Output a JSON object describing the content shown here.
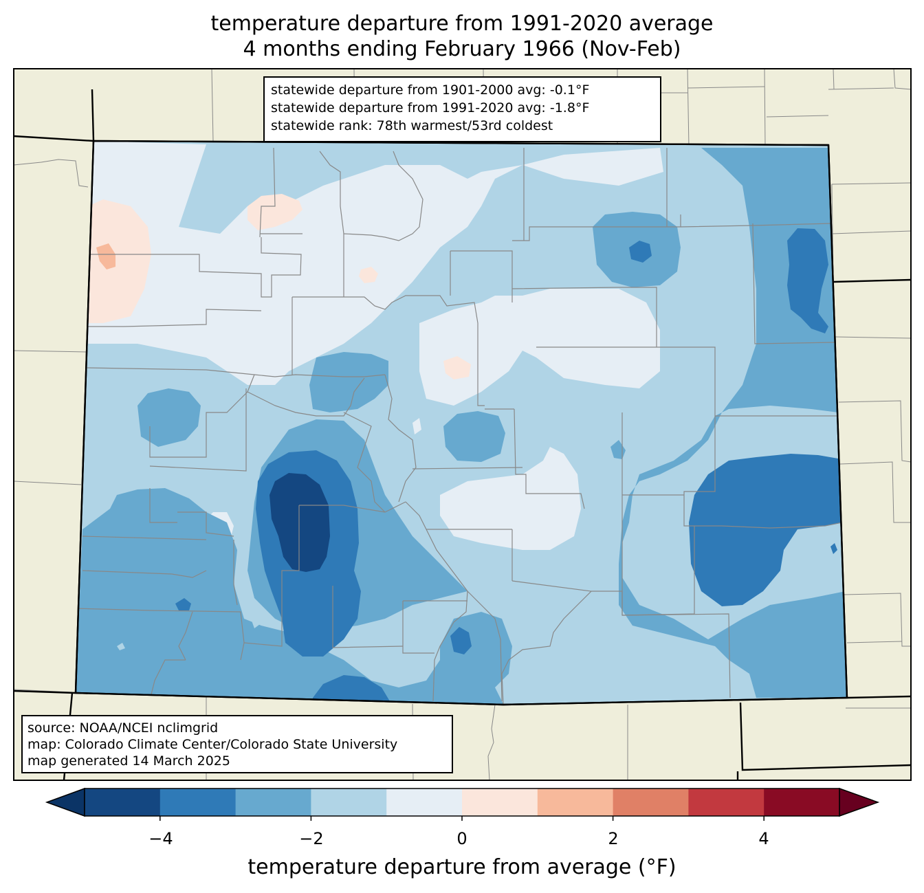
{
  "title": {
    "line1": "temperature departure from 1991-2020 average",
    "line2": "4 months ending February 1966 (Nov-Feb)"
  },
  "stats": {
    "line1": "statewide departure from 1901-2000 avg: -0.1°F",
    "line2": "statewide departure from 1991-2020 avg: -1.8°F",
    "line3": "statewide rank: 78th warmest/53rd coldest"
  },
  "source": {
    "line1": "source: NOAA/NCEI nclimgrid",
    "line2": "map: Colorado Climate Center/Colorado State University",
    "line3": "map generated 14 March 2025"
  },
  "colorbar": {
    "label": "temperature departure from average (°F)",
    "ticks": [
      "−4",
      "−2",
      "0",
      "2",
      "4"
    ],
    "bins": [
      {
        "range": "-5 to -4",
        "color": "#144781"
      },
      {
        "range": "-4 to -3",
        "color": "#2f7ab7"
      },
      {
        "range": "-3 to -2",
        "color": "#67a9cf"
      },
      {
        "range": "-2 to -1",
        "color": "#b0d4e6"
      },
      {
        "range": "-1 to 0",
        "color": "#e6eef5"
      },
      {
        "range": "0 to 1",
        "color": "#fbe6dc"
      },
      {
        "range": "1 to 2",
        "color": "#f7b99b"
      },
      {
        "range": "2 to 3",
        "color": "#e08066"
      },
      {
        "range": "3 to 4",
        "color": "#c2393f"
      },
      {
        "range": "4 to 5",
        "color": "#890b24"
      }
    ],
    "under_color": "#0b3466",
    "over_color": "#67001f"
  },
  "map_colors": {
    "land": "#efeedb",
    "county_lines": "#888888",
    "state_lines": "#000000"
  }
}
